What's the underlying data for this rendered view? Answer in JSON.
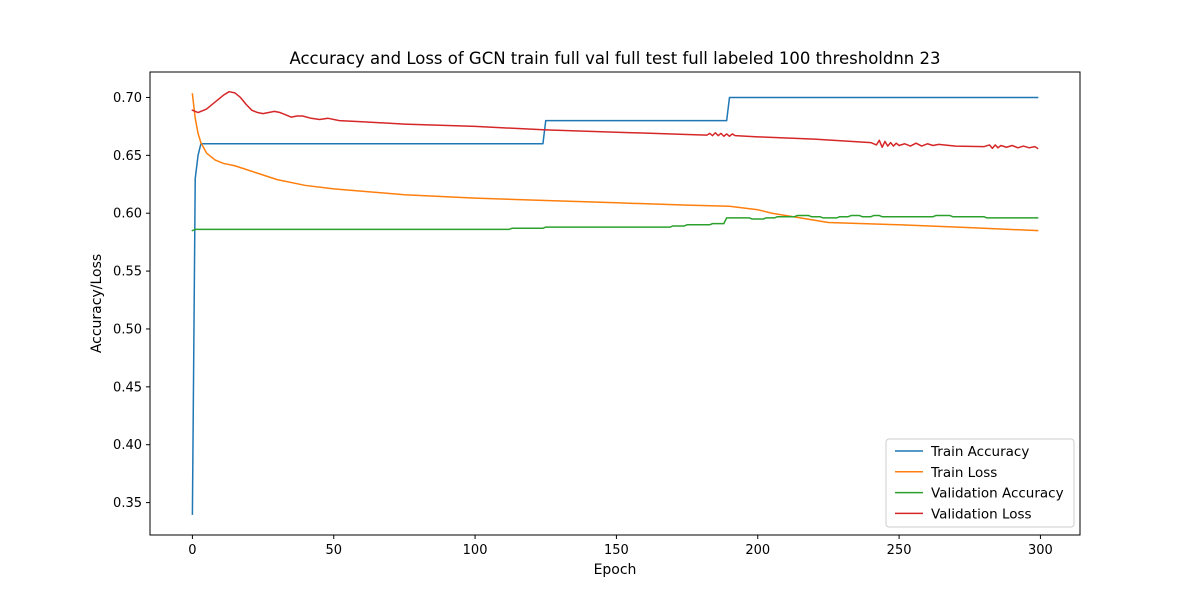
{
  "chart_data": {
    "type": "line",
    "title": "Accuracy and Loss of GCN train full val full test full labeled 100 thresholdnn 23",
    "xlabel": "Epoch",
    "ylabel": "Accuracy/Loss",
    "xlim": [
      -15,
      314
    ],
    "ylim": [
      0.322,
      0.722
    ],
    "xticks": [
      0,
      50,
      100,
      150,
      200,
      250,
      300
    ],
    "yticks": [
      0.35,
      0.4,
      0.45,
      0.5,
      0.55,
      0.6,
      0.65,
      0.7
    ],
    "ytick_labels": [
      "0.35",
      "0.40",
      "0.45",
      "0.50",
      "0.55",
      "0.60",
      "0.65",
      "0.70"
    ],
    "grid": false,
    "legend_position": "lower-right",
    "series": [
      {
        "name": "Train Accuracy",
        "color": "#1f77b4",
        "points": [
          [
            0,
            0.34
          ],
          [
            1,
            0.63
          ],
          [
            2,
            0.65
          ],
          [
            3,
            0.66
          ],
          [
            124,
            0.66
          ],
          [
            125,
            0.68
          ],
          [
            189,
            0.68
          ],
          [
            190,
            0.7
          ],
          [
            299,
            0.7
          ]
        ]
      },
      {
        "name": "Train Loss",
        "color": "#ff7f0e",
        "points": [
          [
            0,
            0.703
          ],
          [
            1,
            0.682
          ],
          [
            2,
            0.669
          ],
          [
            3,
            0.661
          ],
          [
            5,
            0.652
          ],
          [
            8,
            0.646
          ],
          [
            11,
            0.643
          ],
          [
            15,
            0.641
          ],
          [
            20,
            0.637
          ],
          [
            25,
            0.633
          ],
          [
            30,
            0.629
          ],
          [
            40,
            0.624
          ],
          [
            50,
            0.621
          ],
          [
            75,
            0.616
          ],
          [
            100,
            0.613
          ],
          [
            125,
            0.611
          ],
          [
            150,
            0.609
          ],
          [
            175,
            0.607
          ],
          [
            190,
            0.606
          ],
          [
            200,
            0.603
          ],
          [
            205,
            0.6
          ],
          [
            215,
            0.596
          ],
          [
            225,
            0.592
          ],
          [
            250,
            0.59
          ],
          [
            275,
            0.5875
          ],
          [
            299,
            0.585
          ]
        ]
      },
      {
        "name": "Validation Accuracy",
        "color": "#2ca02c",
        "points": [
          [
            0,
            0.585
          ],
          [
            1,
            0.586
          ],
          [
            112,
            0.586
          ],
          [
            113,
            0.587
          ],
          [
            124,
            0.587
          ],
          [
            125,
            0.588
          ],
          [
            169,
            0.588
          ],
          [
            170,
            0.589
          ],
          [
            174,
            0.589
          ],
          [
            175,
            0.59
          ],
          [
            183,
            0.59
          ],
          [
            184,
            0.591
          ],
          [
            188,
            0.591
          ],
          [
            189,
            0.596
          ],
          [
            197,
            0.596
          ],
          [
            198,
            0.595
          ],
          [
            202,
            0.595
          ],
          [
            203,
            0.596
          ],
          [
            206,
            0.596
          ],
          [
            207,
            0.597
          ],
          [
            213,
            0.597
          ],
          [
            214,
            0.598
          ],
          [
            218,
            0.598
          ],
          [
            219,
            0.597
          ],
          [
            222,
            0.597
          ],
          [
            223,
            0.596
          ],
          [
            228,
            0.596
          ],
          [
            229,
            0.597
          ],
          [
            232,
            0.597
          ],
          [
            233,
            0.598
          ],
          [
            236,
            0.598
          ],
          [
            237,
            0.597
          ],
          [
            240,
            0.597
          ],
          [
            241,
            0.598
          ],
          [
            243,
            0.598
          ],
          [
            244,
            0.597
          ],
          [
            262,
            0.597
          ],
          [
            263,
            0.598
          ],
          [
            268,
            0.598
          ],
          [
            269,
            0.597
          ],
          [
            280,
            0.597
          ],
          [
            281,
            0.596
          ],
          [
            299,
            0.596
          ]
        ]
      },
      {
        "name": "Validation Loss",
        "color": "#d62728",
        "points": [
          [
            0,
            0.689
          ],
          [
            2,
            0.687
          ],
          [
            5,
            0.69
          ],
          [
            8,
            0.696
          ],
          [
            11,
            0.702
          ],
          [
            13,
            0.705
          ],
          [
            15,
            0.704
          ],
          [
            17,
            0.7
          ],
          [
            19,
            0.694
          ],
          [
            21,
            0.689
          ],
          [
            23,
            0.687
          ],
          [
            25,
            0.686
          ],
          [
            27,
            0.687
          ],
          [
            29,
            0.688
          ],
          [
            31,
            0.687
          ],
          [
            33,
            0.685
          ],
          [
            35,
            0.683
          ],
          [
            37,
            0.684
          ],
          [
            39,
            0.684
          ],
          [
            42,
            0.682
          ],
          [
            45,
            0.681
          ],
          [
            48,
            0.682
          ],
          [
            52,
            0.68
          ],
          [
            60,
            0.679
          ],
          [
            75,
            0.677
          ],
          [
            100,
            0.675
          ],
          [
            125,
            0.672
          ],
          [
            150,
            0.67
          ],
          [
            175,
            0.668
          ],
          [
            182,
            0.6675
          ],
          [
            183,
            0.669
          ],
          [
            184,
            0.667
          ],
          [
            185,
            0.6695
          ],
          [
            186,
            0.667
          ],
          [
            187,
            0.669
          ],
          [
            188,
            0.6665
          ],
          [
            189,
            0.6685
          ],
          [
            190,
            0.6665
          ],
          [
            191,
            0.6685
          ],
          [
            192,
            0.667
          ],
          [
            200,
            0.666
          ],
          [
            220,
            0.664
          ],
          [
            240,
            0.661
          ],
          [
            242,
            0.659
          ],
          [
            243,
            0.663
          ],
          [
            244,
            0.657
          ],
          [
            245,
            0.662
          ],
          [
            246,
            0.658
          ],
          [
            247,
            0.661
          ],
          [
            248,
            0.658
          ],
          [
            249,
            0.6605
          ],
          [
            250,
            0.6585
          ],
          [
            252,
            0.66
          ],
          [
            254,
            0.658
          ],
          [
            256,
            0.6605
          ],
          [
            258,
            0.658
          ],
          [
            260,
            0.66
          ],
          [
            262,
            0.6585
          ],
          [
            264,
            0.6595
          ],
          [
            270,
            0.658
          ],
          [
            280,
            0.6575
          ],
          [
            282,
            0.659
          ],
          [
            283,
            0.656
          ],
          [
            284,
            0.659
          ],
          [
            285,
            0.6565
          ],
          [
            286,
            0.6585
          ],
          [
            288,
            0.657
          ],
          [
            290,
            0.6585
          ],
          [
            292,
            0.6565
          ],
          [
            294,
            0.658
          ],
          [
            296,
            0.6565
          ],
          [
            298,
            0.6575
          ],
          [
            299,
            0.656
          ]
        ]
      }
    ]
  }
}
